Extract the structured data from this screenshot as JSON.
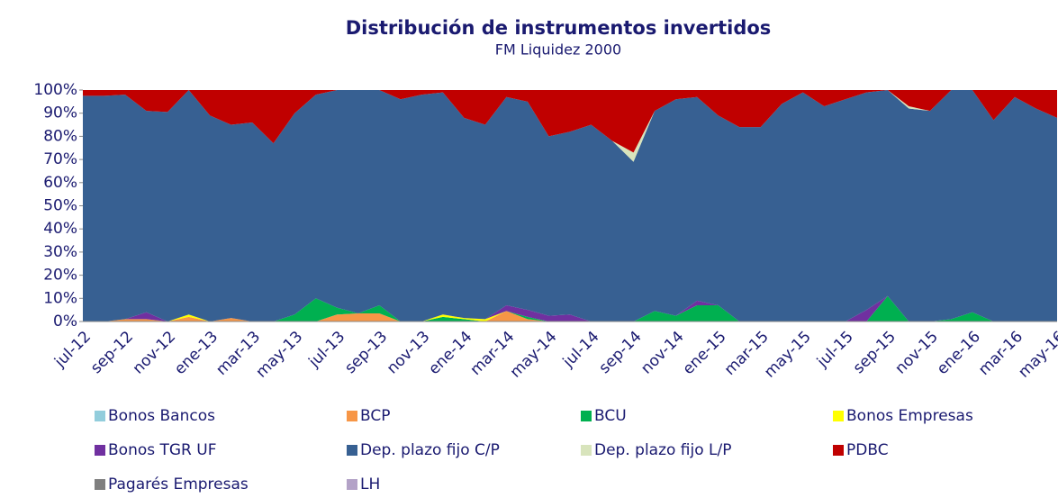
{
  "chart_data": {
    "type": "stacked_area",
    "title": "Distribución de instrumentos invertidos",
    "subtitle": "FM Liquidez 2000",
    "categories": [
      "jul-12",
      null,
      "sep-12",
      null,
      "nov-12",
      null,
      "ene-13",
      null,
      "mar-13",
      null,
      "may-13",
      null,
      "jul-13",
      null,
      "sep-13",
      null,
      "nov-13",
      null,
      "ene-14",
      null,
      "mar-14",
      null,
      "may-14",
      null,
      "jul-14",
      null,
      "sep-14",
      null,
      "nov-14",
      null,
      "ene-15",
      null,
      "mar-15",
      null,
      "may-15",
      null,
      "jul-15",
      null,
      "sep-15",
      null,
      "nov-15",
      null,
      "ene-16",
      null,
      "mar-16",
      null,
      "may-16"
    ],
    "ylim": [
      0,
      100
    ],
    "yticks": [
      {
        "value": 0,
        "label": "0%"
      },
      {
        "value": 10,
        "label": "10%"
      },
      {
        "value": 20,
        "label": "20%"
      },
      {
        "value": 30,
        "label": "30%"
      },
      {
        "value": 40,
        "label": "40%"
      },
      {
        "value": 50,
        "label": "50%"
      },
      {
        "value": 60,
        "label": "60%"
      },
      {
        "value": 70,
        "label": "70%"
      },
      {
        "value": 80,
        "label": "80%"
      },
      {
        "value": 90,
        "label": "90%"
      },
      {
        "value": 100,
        "label": "100%"
      }
    ],
    "series": [
      {
        "name": "Bonos Bancos",
        "color": "#92cddc",
        "values": [
          0,
          0,
          0,
          0,
          0,
          0,
          0,
          0,
          0,
          0,
          0,
          0,
          0,
          0,
          0,
          0,
          0,
          0,
          0,
          0,
          0,
          0,
          0,
          0,
          0,
          0,
          0,
          0,
          0,
          0,
          0,
          0,
          0,
          0,
          0,
          0,
          0,
          0,
          0,
          0,
          0,
          0,
          0,
          0,
          0,
          0,
          0
        ]
      },
      {
        "name": "BCP",
        "color": "#f79646",
        "values": [
          0,
          0,
          1,
          1,
          0,
          2,
          0,
          1.5,
          0,
          0,
          0,
          0,
          3,
          3.5,
          3.5,
          0,
          0,
          0,
          0,
          0,
          4.5,
          1,
          0,
          0,
          0,
          0,
          0,
          0,
          0,
          0,
          0,
          0,
          0,
          0,
          0,
          0,
          0,
          0,
          0,
          0,
          0,
          0,
          0,
          0,
          0,
          0,
          0
        ]
      },
      {
        "name": "BCU",
        "color": "#00b050",
        "values": [
          0,
          0,
          0,
          0,
          0,
          0,
          0,
          0,
          0,
          0,
          3,
          10,
          3,
          0,
          3.5,
          0,
          0,
          2,
          1,
          0,
          0,
          1,
          0,
          0,
          0,
          0,
          0,
          4.5,
          2.5,
          7,
          7,
          0,
          0,
          0,
          0,
          0,
          0,
          0,
          11,
          0,
          0,
          1,
          4,
          0,
          0,
          0,
          0
        ]
      },
      {
        "name": "Bonos Empresas",
        "color": "#ffff00",
        "values": [
          0,
          0,
          0,
          0,
          0,
          1,
          0,
          0,
          0,
          0,
          0,
          0,
          0,
          0,
          0,
          0,
          0,
          1,
          0.5,
          1,
          0,
          0,
          0,
          0,
          0,
          0,
          0,
          0,
          0,
          0,
          0,
          0,
          0,
          0,
          0,
          0,
          0,
          0,
          0,
          0,
          0,
          0,
          0,
          0,
          0,
          0,
          0
        ]
      },
      {
        "name": "Bonos TGR UF",
        "color": "#7030a0",
        "values": [
          0,
          0,
          0,
          3,
          0,
          0,
          0,
          0,
          0,
          0,
          0,
          0,
          0,
          0,
          0,
          0,
          0,
          0,
          0,
          0,
          2.5,
          3,
          2.5,
          3,
          0,
          0,
          0,
          0,
          0,
          2,
          0,
          0,
          0,
          0,
          0,
          0,
          0,
          5,
          0,
          0,
          0,
          0,
          0,
          0,
          0,
          0,
          0
        ]
      },
      {
        "name": "Dep. plazo fijo C/P",
        "color": "#376092",
        "values": [
          97.5,
          97.5,
          97,
          87,
          90.5,
          97,
          89,
          83.5,
          86,
          77,
          87,
          88,
          94,
          96.5,
          93,
          96,
          98,
          96,
          86.5,
          84,
          90,
          90,
          77.5,
          79,
          85,
          78,
          69,
          86.5,
          93.5,
          88,
          82,
          84,
          84,
          94,
          99,
          93,
          96,
          94,
          89,
          92,
          91,
          99,
          96,
          87,
          97,
          92,
          88
        ]
      },
      {
        "name": "Dep. plazo fijo L/P",
        "color": "#d8e4bc",
        "values": [
          0,
          0,
          0,
          0,
          0,
          0,
          0,
          0,
          0,
          0,
          0,
          0,
          0,
          0,
          0,
          0,
          0,
          0,
          0,
          0,
          0,
          0,
          0,
          0,
          0,
          0,
          4,
          0,
          0,
          0,
          0,
          0,
          0,
          0,
          0,
          0,
          0,
          0,
          0,
          1,
          0,
          0,
          0,
          0,
          0,
          0,
          0
        ]
      },
      {
        "name": "PDBC",
        "color": "#c00000",
        "values": [
          2.5,
          2.5,
          2,
          9,
          9.5,
          0,
          11,
          15,
          14,
          23,
          10,
          2,
          0,
          0,
          0,
          4,
          2,
          1,
          12,
          15,
          3,
          5,
          20,
          18,
          15,
          22,
          27,
          9,
          4,
          3,
          11,
          16,
          16,
          6,
          1,
          7,
          4,
          1,
          0,
          7,
          9,
          0,
          0,
          13,
          3,
          8,
          12
        ]
      },
      {
        "name": "Pagarés Empresas",
        "color": "#7f7f7f",
        "values": [
          0,
          0,
          0,
          0,
          0,
          0,
          0,
          0,
          0,
          0,
          0,
          0,
          0,
          0,
          0,
          0,
          0,
          0,
          0,
          0,
          0,
          0,
          0,
          0,
          0,
          0,
          0,
          0,
          0,
          0,
          0,
          0,
          0,
          0,
          0,
          0,
          0,
          0,
          0,
          0,
          0,
          0,
          0,
          0,
          0,
          0,
          0
        ]
      },
      {
        "name": "LH",
        "color": "#b3a2c7",
        "values": [
          0,
          0,
          0,
          0,
          0,
          0,
          0,
          0,
          0,
          0,
          0,
          0,
          0,
          0,
          0,
          0,
          0,
          0,
          0,
          0,
          0,
          0,
          0,
          0,
          0,
          0,
          0,
          0,
          0,
          0,
          0,
          0,
          0,
          0,
          0,
          0,
          0,
          0,
          0,
          0,
          0,
          0,
          0,
          0,
          0,
          0,
          0
        ]
      }
    ]
  }
}
